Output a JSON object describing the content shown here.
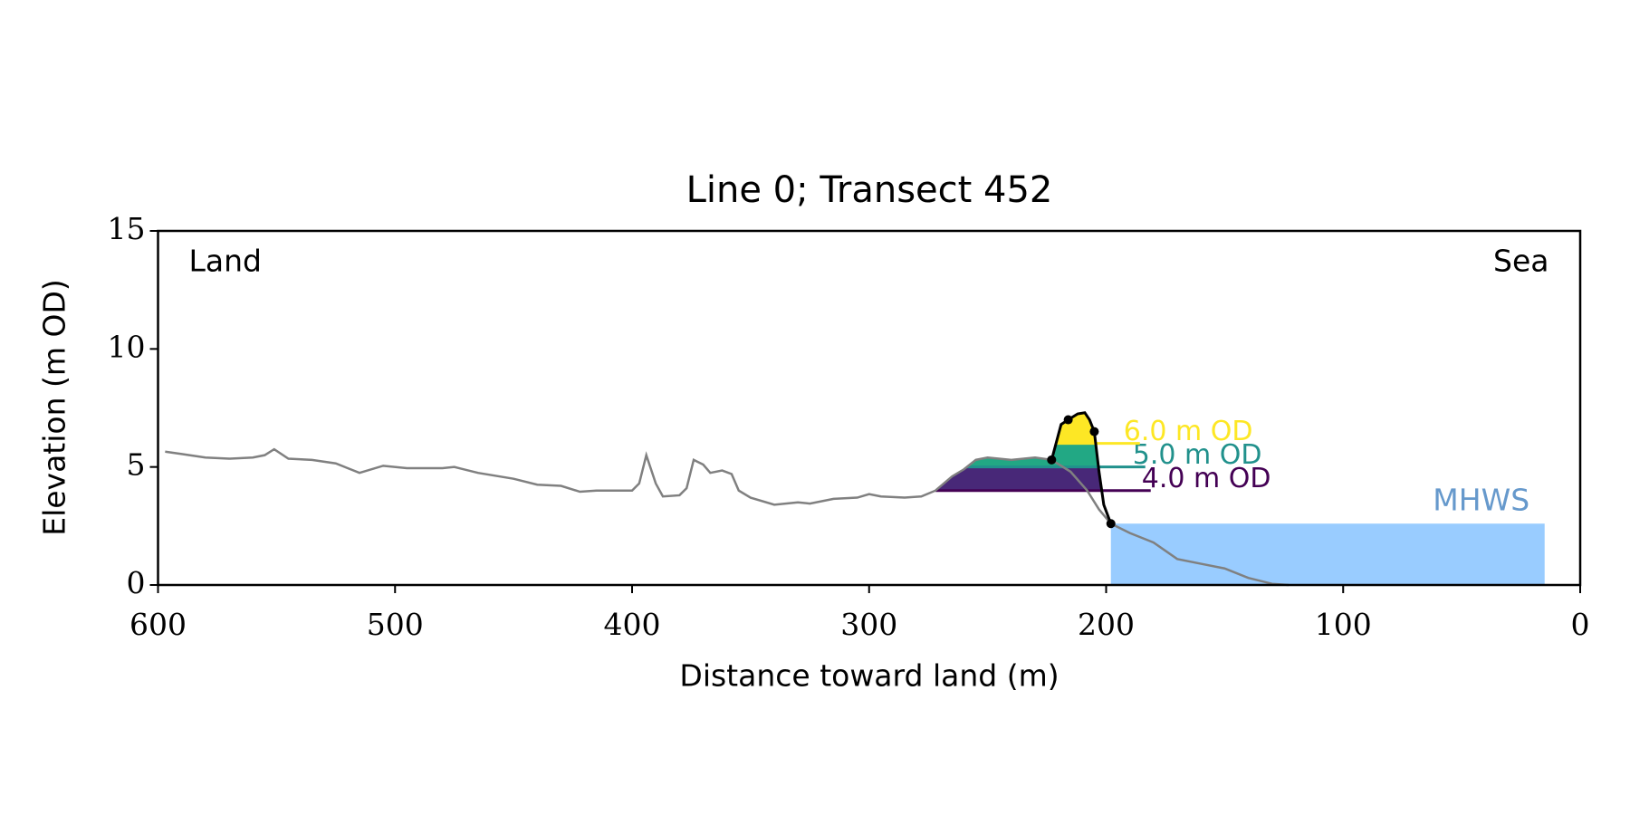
{
  "chart_data": {
    "type": "line",
    "title": "Line 0; Transect 452",
    "x_label": "Distance toward land (m)",
    "y_label": "Elevation (m OD)",
    "xlim": [
      600,
      0
    ],
    "xticks": [
      600,
      500,
      400,
      300,
      200,
      100,
      0
    ],
    "ylim": [
      0,
      15
    ],
    "yticks": [
      0,
      5,
      10,
      15
    ],
    "annotations": [
      "Land",
      "Sea"
    ],
    "series": [
      {
        "color": "#808080",
        "x": [
          597,
          590,
          580,
          570,
          560,
          555,
          551,
          545,
          535,
          525,
          515,
          505,
          495,
          480,
          475,
          465,
          450,
          440,
          430,
          422,
          415,
          405,
          400,
          397,
          394,
          390,
          387,
          380,
          377,
          374,
          370,
          367,
          362,
          358,
          355,
          350,
          340,
          330,
          325,
          315,
          305,
          300,
          295,
          285,
          278,
          272,
          265,
          260,
          255,
          250,
          240,
          230,
          223,
          215,
          208,
          203,
          198,
          190,
          180,
          170,
          160,
          150,
          140,
          130,
          123
        ],
        "values": [
          5.65,
          5.55,
          5.4,
          5.35,
          5.4,
          5.5,
          5.75,
          5.35,
          5.3,
          5.15,
          4.75,
          5.05,
          4.95,
          4.95,
          5.0,
          4.75,
          4.5,
          4.25,
          4.2,
          3.95,
          4.0,
          4.0,
          4.0,
          4.3,
          5.5,
          4.3,
          3.75,
          3.8,
          4.1,
          5.3,
          5.1,
          4.75,
          4.85,
          4.7,
          4.0,
          3.7,
          3.4,
          3.5,
          3.45,
          3.65,
          3.7,
          3.85,
          3.75,
          3.7,
          3.75,
          4.0,
          4.6,
          4.9,
          5.3,
          5.4,
          5.3,
          5.4,
          5.3,
          4.8,
          4.0,
          3.2,
          2.6,
          2.2,
          1.8,
          1.1,
          0.9,
          0.7,
          0.3,
          0.05,
          0.0
        ]
      },
      {
        "color": "#000000",
        "x": [
          223,
          219,
          216,
          212,
          209,
          207,
          205,
          203,
          201,
          198
        ],
        "values": [
          5.3,
          6.8,
          7.0,
          7.25,
          7.3,
          7.0,
          6.5,
          4.8,
          3.4,
          2.6
        ],
        "markers": [
          0,
          2,
          6,
          9
        ]
      }
    ],
    "levels": [
      {
        "value": 4,
        "label": "4.0 m OD",
        "color": "#440154",
        "fill": "#482878"
      },
      {
        "value": 5,
        "label": "5.0 m OD",
        "color": "#21918c",
        "fill": "#22a884"
      },
      {
        "value": 6,
        "label": "6.0 m OD",
        "color": "#fde725",
        "fill": "#fde725"
      }
    ],
    "mhws": {
      "value": 2.6,
      "label": "MHWS",
      "x": [
        198,
        15
      ],
      "color": "#99ccff",
      "label_color": "#6699cc"
    }
  }
}
